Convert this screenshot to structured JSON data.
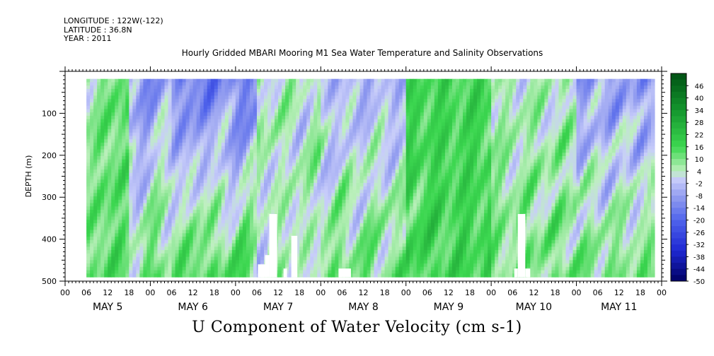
{
  "header": {
    "longitude": "LONGITUDE : 122W(-122)",
    "latitude": "LATITUDE : 36.8N",
    "year": "YEAR : 2011"
  },
  "chart_data": {
    "type": "heatmap",
    "title": "Hourly Gridded MBARI Mooring M1 Sea Water Temperature and Salinity Observations",
    "xlabel": "U Component of Water Velocity (cm s-1)",
    "ylabel": "DEPTH (m)",
    "x_axis": {
      "start_hour": 0,
      "end_hour": 168,
      "hour_tick_labels": [
        "00",
        "06",
        "12",
        "18"
      ],
      "day_labels": [
        "MAY  5",
        "MAY  6",
        "MAY  7",
        "MAY  8",
        "MAY  9",
        "MAY 10",
        "MAY 11"
      ]
    },
    "y_axis": {
      "ticks": [
        100,
        200,
        300,
        400,
        500
      ],
      "range": [
        0,
        500
      ],
      "inverted": true,
      "data_top": 18,
      "data_bottom": 490
    },
    "data_start_hour": 6,
    "colorbar": {
      "labels": [
        "46",
        "40",
        "34",
        "28",
        "22",
        "16",
        "10",
        "4",
        "-2",
        "-8",
        "-14",
        "-20",
        "-26",
        "-32",
        "-38",
        "-44",
        "-50"
      ],
      "min": -50,
      "max": 52,
      "step": 3
    },
    "field_summary": [
      {
        "from_hour": 6,
        "to_hour": 18,
        "shallow": 10,
        "deep": 12
      },
      {
        "from_hour": 18,
        "to_hour": 30,
        "shallow": -8,
        "deep": 10
      },
      {
        "from_hour": 30,
        "to_hour": 54,
        "shallow": -14,
        "deep": 14
      },
      {
        "from_hour": 54,
        "to_hour": 72,
        "shallow": 4,
        "deep": 4
      },
      {
        "from_hour": 72,
        "to_hour": 96,
        "shallow": -4,
        "deep": 10
      },
      {
        "from_hour": 96,
        "to_hour": 120,
        "shallow": 16,
        "deep": 16
      },
      {
        "from_hour": 120,
        "to_hour": 144,
        "shallow": 4,
        "deep": 10
      },
      {
        "from_hour": 144,
        "to_hour": 166,
        "shallow": -8,
        "deep": 10
      }
    ],
    "missing_data": [
      {
        "from_hour": 54.3,
        "to_hour": 56.3,
        "depth_from": 460,
        "depth_to": 490
      },
      {
        "from_hour": 56.3,
        "to_hour": 57.5,
        "depth_from": 438,
        "depth_to": 490
      },
      {
        "from_hour": 57.5,
        "to_hour": 59.7,
        "depth_from": 340,
        "depth_to": 490
      },
      {
        "from_hour": 61.5,
        "to_hour": 62.5,
        "depth_from": 470,
        "depth_to": 490
      },
      {
        "from_hour": 63.7,
        "to_hour": 65.4,
        "depth_from": 392,
        "depth_to": 490
      },
      {
        "from_hour": 77,
        "to_hour": 80.5,
        "depth_from": 470,
        "depth_to": 490
      },
      {
        "from_hour": 126.5,
        "to_hour": 127.5,
        "depth_from": 470,
        "depth_to": 490
      },
      {
        "from_hour": 127.5,
        "to_hour": 129.6,
        "depth_from": 340,
        "depth_to": 490
      },
      {
        "from_hour": 129.6,
        "to_hour": 131,
        "depth_from": 470,
        "depth_to": 490
      }
    ]
  }
}
